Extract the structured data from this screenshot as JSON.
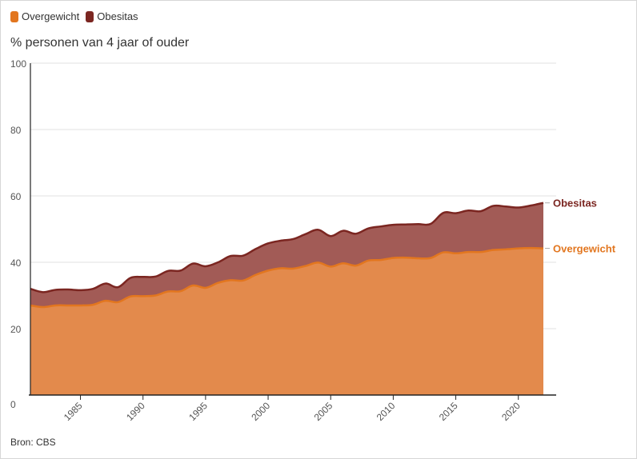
{
  "legend": [
    {
      "name": "Overgewicht",
      "color": "#e2761f"
    },
    {
      "name": "Obesitas",
      "color": "#7b2621"
    }
  ],
  "subtitle": "% personen van 4 jaar of ouder",
  "source": "Bron: CBS",
  "chart_data": {
    "type": "area",
    "stacked": false,
    "ylim": [
      0,
      100
    ],
    "yticks": [
      0,
      20,
      40,
      60,
      80,
      100
    ],
    "xlim": [
      1981,
      2022
    ],
    "xticks": [
      1985,
      1990,
      1995,
      2000,
      2005,
      2010,
      2015,
      2020
    ],
    "grid": "horizontal",
    "x": [
      1981,
      1982,
      1983,
      1984,
      1985,
      1986,
      1987,
      1988,
      1989,
      1990,
      1991,
      1992,
      1993,
      1994,
      1995,
      1996,
      1997,
      1998,
      1999,
      2000,
      2001,
      2002,
      2003,
      2004,
      2005,
      2006,
      2007,
      2008,
      2009,
      2010,
      2011,
      2012,
      2013,
      2014,
      2015,
      2016,
      2017,
      2018,
      2019,
      2020,
      2021,
      2022
    ],
    "series": [
      {
        "name": "Obesitas",
        "color": "#7b2621",
        "fill": "#a25b56",
        "values": [
          32,
          31,
          31.7,
          31.8,
          31.6,
          32,
          33.6,
          32.5,
          35.3,
          35.6,
          35.7,
          37.4,
          37.5,
          39.6,
          38.8,
          40,
          41.9,
          42,
          44,
          45.7,
          46.5,
          47,
          48.5,
          49.8,
          47.9,
          49.5,
          48.6,
          50.2,
          50.8,
          51.3,
          51.4,
          51.5,
          51.6,
          54.9,
          54.8,
          55.6,
          55.4,
          57,
          56.8,
          56.5,
          57.1,
          57.9
        ]
      },
      {
        "name": "Overgewicht",
        "color": "#e2761f",
        "fill": "#e38a4c",
        "values": [
          27,
          26.5,
          27,
          27,
          27,
          27.2,
          28.4,
          28,
          29.7,
          29.8,
          30,
          31.2,
          31.3,
          33,
          32.3,
          33.8,
          34.6,
          34.5,
          36.2,
          37.5,
          38.2,
          38.1,
          38.9,
          39.9,
          38.7,
          39.7,
          39,
          40.5,
          40.7,
          41.3,
          41.4,
          41.2,
          41.3,
          43,
          42.7,
          43.1,
          43.1,
          43.7,
          43.9,
          44.2,
          44.3,
          44.2
        ]
      }
    ]
  }
}
